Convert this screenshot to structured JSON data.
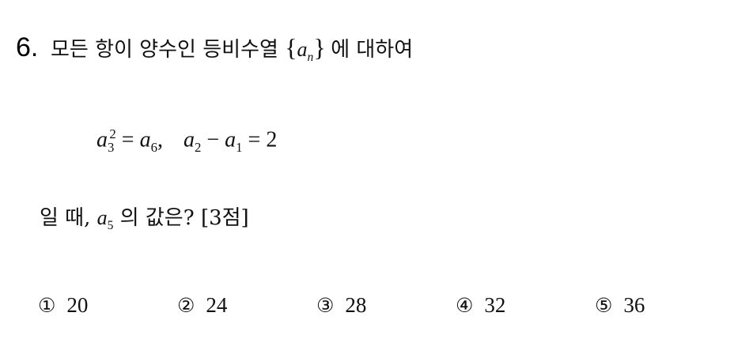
{
  "question": {
    "number": "6.",
    "stem_before": "모든 항이 양수인 등비수열",
    "sequence_var": "a",
    "sequence_sub": "n",
    "stem_after": "에 대하여",
    "condition": {
      "eq1_lhs_var": "a",
      "eq1_lhs_sub": "3",
      "eq1_lhs_sup": "2",
      "eq1_rhs_var": "a",
      "eq1_rhs_sub": "6",
      "separator": ",",
      "eq2_a_var": "a",
      "eq2_a_sub": "2",
      "eq2_b_var": "a",
      "eq2_b_sub": "1",
      "eq2_rhs": "2"
    },
    "tail_before": "일 때,",
    "tail_var": "a",
    "tail_sub": "5",
    "tail_after": "의 값은?",
    "points": "[3점]"
  },
  "choices": [
    {
      "mark": "①",
      "value": "20"
    },
    {
      "mark": "②",
      "value": "24"
    },
    {
      "mark": "③",
      "value": "28"
    },
    {
      "mark": "④",
      "value": "32"
    },
    {
      "mark": "⑤",
      "value": "36"
    }
  ]
}
